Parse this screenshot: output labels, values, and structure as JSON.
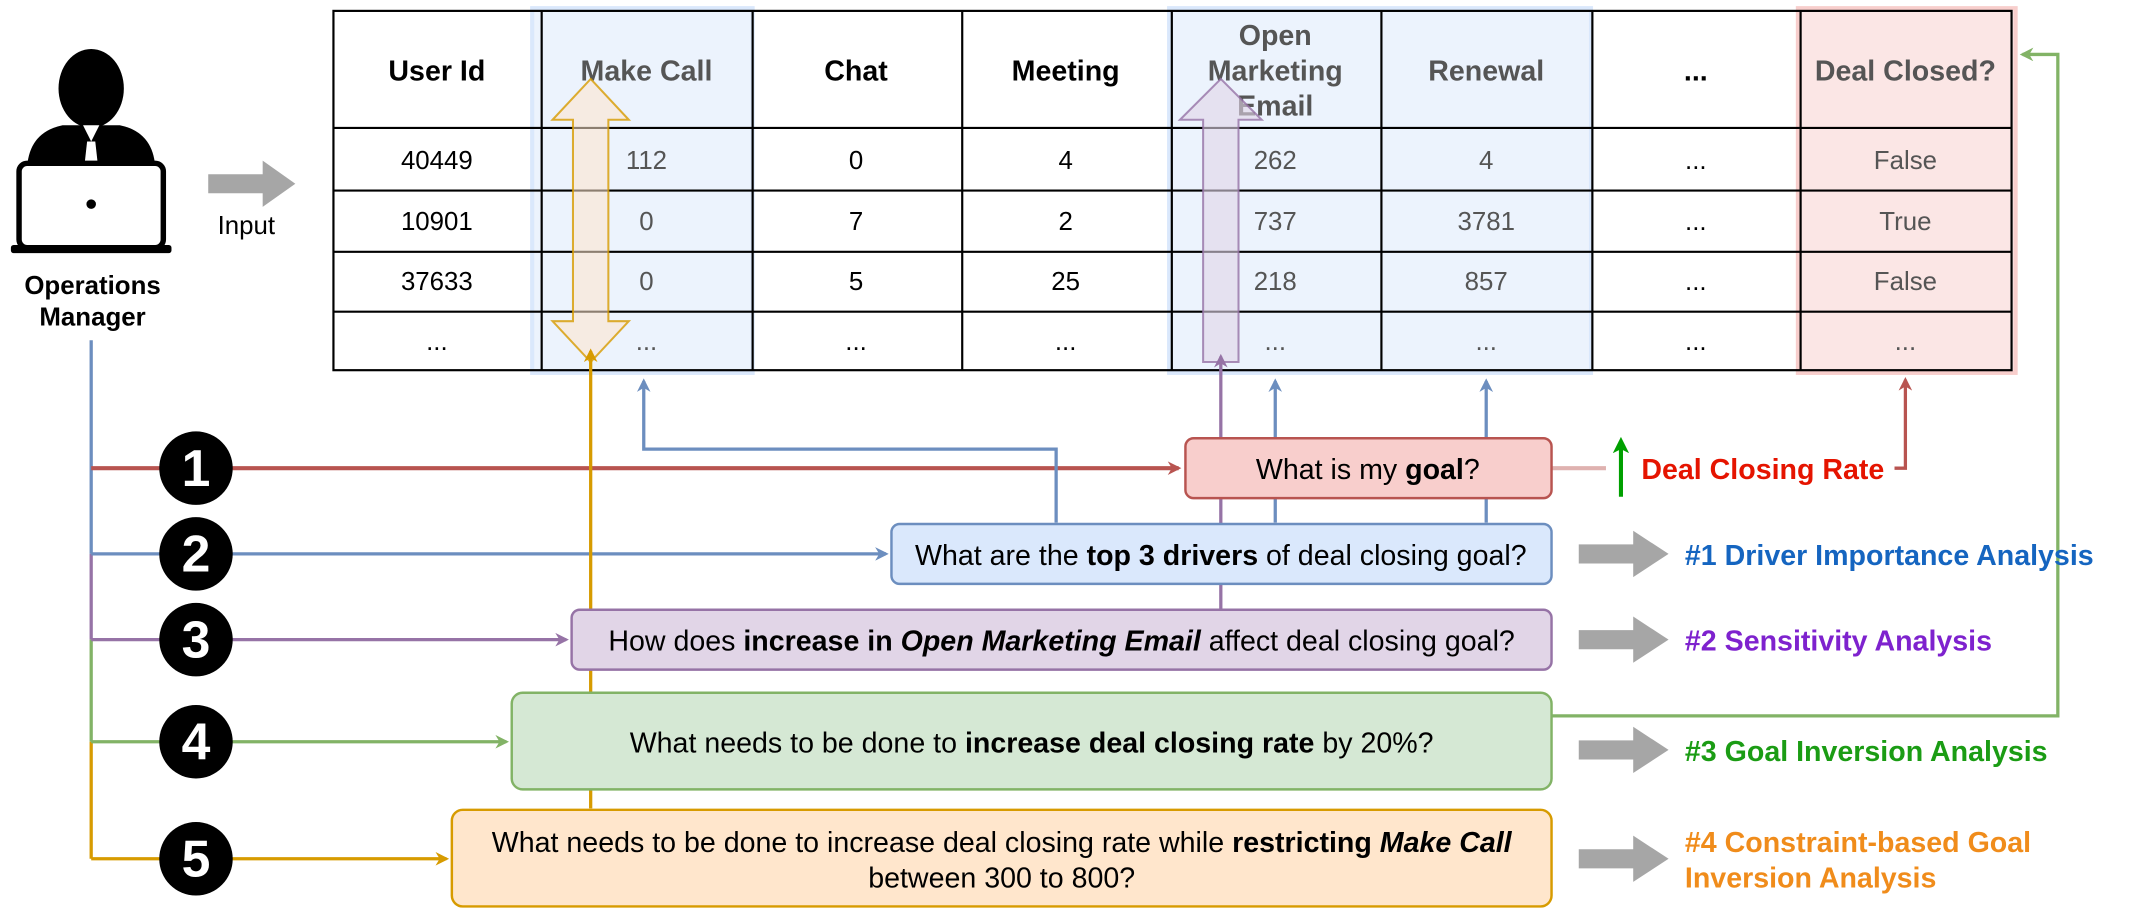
{
  "persona": {
    "label_line1": "Operations",
    "label_line2": "Manager",
    "input_label": "Input"
  },
  "table": {
    "headers": [
      "User Id",
      "Make Call",
      "Chat",
      "Meeting",
      "Open Marketing Email",
      "Renewal",
      "...",
      "Deal Closed?"
    ],
    "header_lines": {
      "open_marketing_email": [
        "Open",
        "Marketing",
        "Email"
      ]
    },
    "rows": [
      [
        "40449",
        "112",
        "0",
        "4",
        "262",
        "4",
        "...",
        "False"
      ],
      [
        "10901",
        "0",
        "7",
        "2",
        "737",
        "3781",
        "...",
        "True"
      ],
      [
        "37633",
        "0",
        "5",
        "25",
        "218",
        "857",
        "...",
        "False"
      ],
      [
        "...",
        "...",
        "...",
        "...",
        "...",
        "...",
        "...",
        "..."
      ]
    ]
  },
  "steps": [
    "1",
    "2",
    "3",
    "4",
    "5"
  ],
  "questions": {
    "q1": {
      "pre": "What is my ",
      "bold": "goal",
      "post": "?"
    },
    "q2": {
      "pre": "What are the ",
      "bold": "top 3 drivers",
      "post": " of deal closing goal?"
    },
    "q3": {
      "pre": "How does ",
      "bold": "increase in ",
      "bold_italic": "Open Marketing Email",
      "post": " affect deal closing goal?"
    },
    "q4": {
      "pre": "What needs to be done to ",
      "bold": "increase deal closing rate",
      "post": " by 20%?"
    },
    "q5": {
      "pre": "What needs to be done to increase deal closing rate while ",
      "bold": "restricting ",
      "bold_italic": "Make Call",
      "line2": "between 300 to 800?"
    }
  },
  "goal_label": "Deal Closing Rate",
  "analyses": {
    "a1": "#1 Driver Importance Analysis",
    "a2": "#2 Sensitivity Analysis",
    "a3": "#3 Goal Inversion Analysis",
    "a4_line1": "#4 Constraint-based Goal",
    "a4_line2": "Inversion Analysis"
  },
  "colors": {
    "red": "#b85450",
    "red_fill": "#f8cecc",
    "red_text": "#e51400",
    "blue": "#6c8ebf",
    "blue_fill": "#dae8fc",
    "blue_text": "#1565c0",
    "purple": "#9673a6",
    "purple_fill": "#e1d5e7",
    "purple_text": "#7e22ce",
    "green": "#82b366",
    "green_fill": "#d5e8d4",
    "green_text": "#1b9c14",
    "orange": "#d79b00",
    "orange_fill": "#ffe6cc",
    "orange_text": "#f08c1b",
    "gray_arrow": "#a6a6a6",
    "up_arrow": "#00a000"
  },
  "icons": [
    "operations-manager-icon",
    "input-arrow-icon",
    "up-arrow-icon",
    "analysis-arrow-icon"
  ]
}
